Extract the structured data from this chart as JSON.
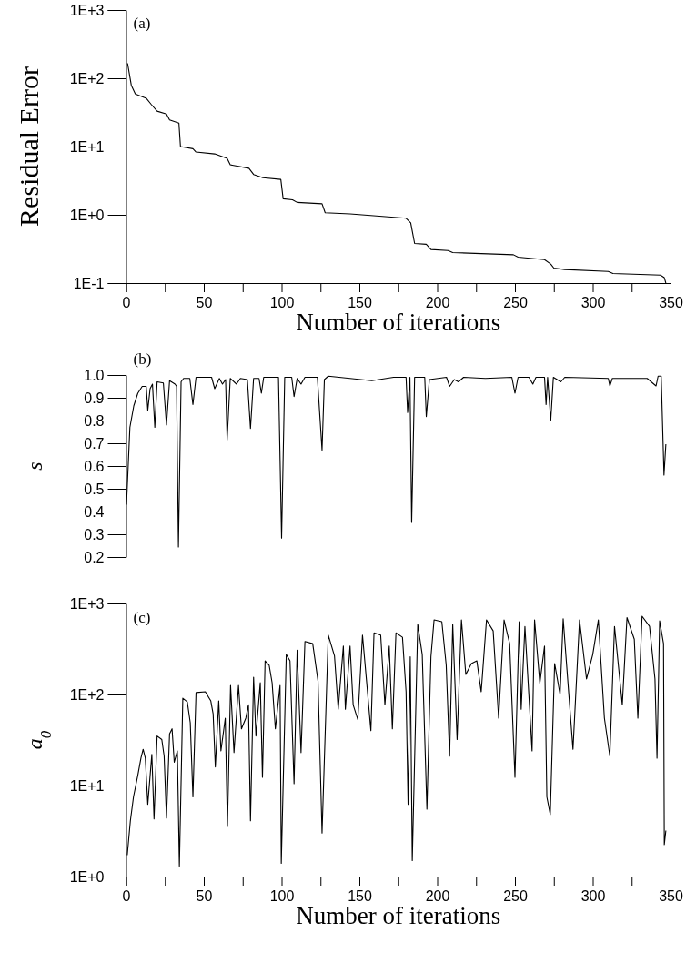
{
  "chart_data": [
    {
      "type": "line",
      "xlabel": "Number of iterations",
      "ylabel": "Residual Error",
      "annotations": [
        "(a)"
      ],
      "log": "y",
      "xlim": [
        0,
        350
      ],
      "ylim": [
        0.1,
        1000
      ],
      "xticks": [
        0,
        {
          "value": 25,
          "label": null
        },
        50,
        {
          "value": 75,
          "label": null
        },
        100,
        {
          "value": 125,
          "label": null
        },
        150,
        {
          "value": 175,
          "label": null
        },
        200,
        {
          "value": 225,
          "label": null
        },
        250,
        {
          "value": 275,
          "label": null
        },
        300,
        {
          "value": 325,
          "label": null
        },
        350
      ],
      "yticks": [
        {
          "value": 0.1,
          "label": "1E-1"
        },
        {
          "value": 1,
          "label": "1E+0"
        },
        {
          "value": 10,
          "label": "1E+1"
        },
        {
          "value": 100,
          "label": "1E+2"
        },
        {
          "value": 1000,
          "label": "1E+3"
        }
      ],
      "series": [
        {
          "color": "#000000",
          "x": [
            1,
            3.4,
            6,
            13,
            16,
            20,
            26,
            28,
            34,
            35,
            43,
            45,
            57,
            65,
            67,
            79,
            82,
            88,
            99.5,
            101,
            107,
            110,
            126,
            128,
            144,
            180,
            183,
            185.5,
            193,
            196,
            207,
            210,
            249,
            252,
            269,
            273,
            275,
            282,
            310,
            313,
            343.5,
            346,
            347
          ],
          "values": [
            166,
            79,
            59,
            51,
            42,
            33,
            30,
            24.5,
            22,
            10,
            9.3,
            8.3,
            7.8,
            6.7,
            5.4,
            4.8,
            3.9,
            3.5,
            3.3,
            1.72,
            1.66,
            1.52,
            1.45,
            1.07,
            1.03,
            0.89,
            0.76,
            0.38,
            0.37,
            0.31,
            0.3,
            0.28,
            0.26,
            0.24,
            0.22,
            0.19,
            0.166,
            0.158,
            0.148,
            0.138,
            0.131,
            0.12,
            0.1
          ]
        }
      ]
    },
    {
      "type": "line",
      "ylabel": "s",
      "annotations": [
        "(b)"
      ],
      "tick_labels": "y",
      "xlim": [
        0,
        350
      ],
      "ylim": [
        0.2,
        1.0
      ],
      "yticks": [
        0.2,
        0.3,
        0.4,
        0.5,
        0.6,
        0.7,
        0.8,
        0.9,
        {
          "value": 1.0,
          "label": "1.0"
        }
      ],
      "series": [
        {
          "color": "#000000",
          "x": [
            0.3,
            2.5,
            5,
            7.6,
            10.4,
            13,
            14,
            15.5,
            17,
            18.5,
            20,
            24,
            26,
            28,
            31.5,
            32.5,
            33.7,
            35.4,
            37,
            41,
            43,
            45,
            55,
            57,
            60,
            62,
            64,
            65,
            67,
            71,
            73.5,
            78,
            80,
            82,
            85.5,
            87,
            88.5,
            98,
            100,
            102,
            106.5,
            108,
            110,
            112.5,
            115,
            123,
            126,
            127.5,
            130,
            144,
            158,
            172,
            180,
            181,
            182.5,
            183.6,
            185.5,
            192,
            193,
            195,
            206,
            208,
            211,
            213.7,
            217,
            231,
            248,
            250,
            252,
            259,
            261.5,
            263.5,
            269,
            270,
            271,
            273,
            274.7,
            279.5,
            282,
            310,
            311,
            312.6,
            335,
            340.7,
            342,
            344,
            345.8,
            347
          ],
          "values": [
            0.43,
            0.77,
            0.865,
            0.92,
            0.95,
            0.95,
            0.845,
            0.94,
            0.96,
            0.77,
            0.97,
            0.965,
            0.78,
            0.975,
            0.96,
            0.95,
            0.244,
            0.97,
            0.985,
            0.985,
            0.87,
            0.99,
            0.99,
            0.94,
            0.985,
            0.96,
            0.98,
            0.715,
            0.985,
            0.96,
            0.985,
            0.98,
            0.765,
            0.985,
            0.985,
            0.92,
            0.99,
            0.99,
            0.283,
            0.99,
            0.99,
            0.905,
            0.985,
            0.96,
            0.99,
            0.99,
            0.67,
            0.98,
            0.995,
            0.985,
            0.975,
            0.99,
            0.99,
            0.835,
            0.99,
            0.352,
            0.99,
            0.99,
            0.817,
            0.98,
            0.99,
            0.95,
            0.98,
            0.97,
            0.99,
            0.985,
            0.99,
            0.92,
            0.99,
            0.99,
            0.96,
            0.99,
            0.99,
            0.87,
            0.99,
            0.8,
            0.99,
            0.97,
            0.99,
            0.985,
            0.952,
            0.985,
            0.985,
            0.952,
            0.995,
            0.995,
            0.56,
            0.696
          ]
        }
      ]
    },
    {
      "type": "line",
      "xlabel": "Number of iterations",
      "ylabel": "a$_{0}$",
      "annotations": [
        "(c)"
      ],
      "log": "y",
      "xlim": [
        0,
        350
      ],
      "ylim": [
        1,
        1000
      ],
      "xticks": [
        0,
        {
          "value": 25,
          "label": null
        },
        50,
        {
          "value": 75,
          "label": null
        },
        100,
        {
          "value": 125,
          "label": null
        },
        150,
        {
          "value": 175,
          "label": null
        },
        200,
        {
          "value": 225,
          "label": null
        },
        250,
        {
          "value": 275,
          "label": null
        },
        300,
        {
          "value": 325,
          "label": null
        },
        350
      ],
      "yticks": [
        {
          "value": 1,
          "label": "1E+0"
        },
        {
          "value": 10,
          "label": "1E+1"
        },
        {
          "value": 100,
          "label": "1E+2"
        },
        {
          "value": 1000,
          "label": "1E+3"
        }
      ],
      "series": [
        {
          "color": "#000000",
          "x": [
            0.8,
            2.8,
            4.8,
            7.6,
            9.6,
            11,
            12.4,
            14,
            16.6,
            18,
            20,
            23,
            24.5,
            26,
            28,
            29.6,
            31,
            33,
            34.3,
            36.5,
            39.4,
            41.3,
            43,
            45,
            51,
            54.5,
            56,
            57.4,
            59.6,
            61,
            63.8,
            65.2,
            67.2,
            69.4,
            72.3,
            74.2,
            77,
            78.7,
            80,
            82,
            83.5,
            86.3,
            87.7,
            89.4,
            92,
            93.9,
            96,
            99,
            99.8,
            103,
            105.4,
            108,
            110,
            112.5,
            115,
            120,
            123.4,
            126,
            130,
            134,
            136.4,
            139.7,
            141,
            144,
            146,
            149,
            152,
            154.6,
            157.4,
            159.4,
            163.7,
            166.4,
            169.2,
            171.2,
            173.5,
            177.7,
            180,
            181.3,
            182.7,
            184,
            187.5,
            190.4,
            193.4,
            196,
            198,
            203,
            205.8,
            208,
            210,
            212.8,
            215.6,
            218.4,
            222,
            225.5,
            228.3,
            231.7,
            236,
            239.5,
            243,
            246.6,
            250,
            252.7,
            254,
            256.4,
            261,
            262.6,
            266,
            269,
            270.5,
            272.7,
            275.5,
            279,
            281,
            283,
            287.3,
            291.5,
            296,
            300,
            303.6,
            307.5,
            311,
            314,
            319,
            322,
            326.7,
            329,
            331.7,
            336.5,
            340,
            341.3,
            343,
            345.5,
            346,
            347
          ],
          "values": [
            1.72,
            4.1,
            7.5,
            13,
            20,
            25,
            20,
            6.2,
            22,
            4.3,
            35,
            32,
            21,
            4.4,
            37,
            42,
            18,
            24,
            1.3,
            91,
            83,
            49,
            7.5,
            105,
            107,
            85,
            61,
            16,
            85,
            24,
            55,
            3.55,
            126,
            23,
            126,
            42,
            55,
            77,
            4.1,
            155,
            35,
            135,
            12.3,
            234,
            210,
            135,
            42,
            126,
            1.4,
            275,
            234,
            10.5,
            307,
            23,
            383,
            362,
            141,
            3.0,
            450,
            265,
            69,
            340,
            69,
            340,
            77,
            53,
            450,
            141,
            40,
            475,
            450,
            77,
            340,
            42,
            475,
            425,
            107,
            6.2,
            260,
            1.5,
            590,
            275,
            5.5,
            260,
            660,
            630,
            210,
            21,
            590,
            32,
            660,
            166,
            219,
            234,
            107,
            660,
            500,
            55,
            660,
            362,
            12.3,
            630,
            69,
            560,
            24,
            660,
            133,
            340,
            7.5,
            4.8,
            219,
            100,
            680,
            234,
            25,
            660,
            148,
            275,
            660,
            55,
            21,
            560,
            77,
            700,
            405,
            55,
            725,
            560,
            148,
            20,
            645,
            362,
            2.24,
            3.2
          ]
        }
      ]
    }
  ]
}
